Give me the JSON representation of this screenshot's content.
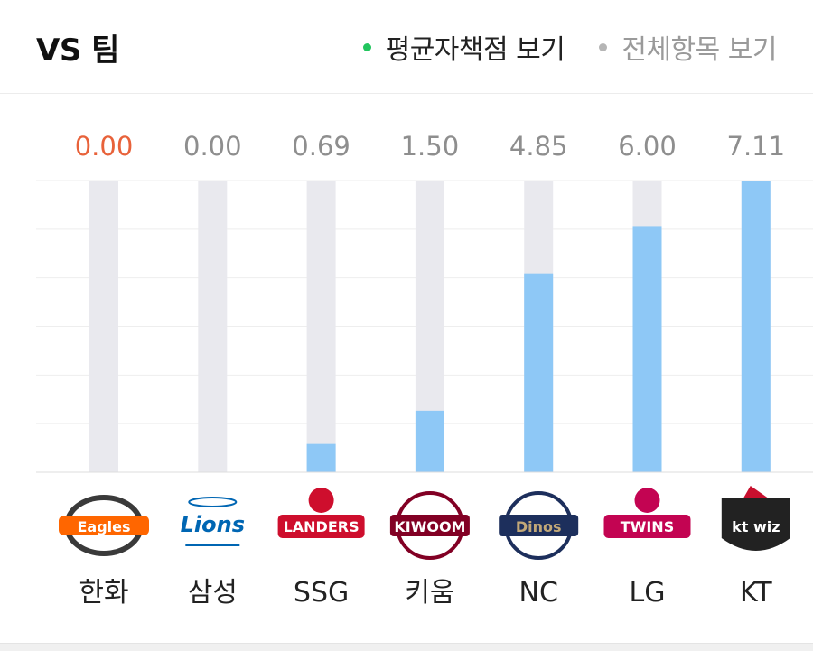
{
  "header": {
    "title": "VS 팀",
    "toggles": [
      {
        "label": "평균자책점 보기",
        "active": true
      },
      {
        "label": "전체항목 보기",
        "active": false
      }
    ]
  },
  "colors": {
    "bar_fill": "#8ec8f6",
    "bar_track": "#e9e9ee",
    "value_highlight": "#e8623a",
    "value_default": "#8e8e8e",
    "grid": "#eeeeee"
  },
  "chart_data": {
    "type": "bar",
    "categories": [
      "한화",
      "삼성",
      "SSG",
      "키움",
      "NC",
      "LG",
      "KT"
    ],
    "values": [
      0.0,
      0.0,
      0.69,
      1.5,
      4.85,
      6.0,
      7.11
    ],
    "value_labels": [
      "0.00",
      "0.00",
      "0.69",
      "1.50",
      "4.85",
      "6.00",
      "7.11"
    ],
    "highlight_index": 0,
    "ylim": [
      0,
      7.11
    ],
    "grid": true
  },
  "team_logos": [
    {
      "name": "Eagles",
      "icon": "eagles-logo",
      "bg": "#ff6600",
      "fg": "#ffffff",
      "shape": "oval"
    },
    {
      "name": "Lions",
      "icon": "lions-logo",
      "bg": "#ffffff",
      "fg": "#0066b3",
      "shape": "script"
    },
    {
      "name": "LANDERS",
      "icon": "landers-logo",
      "bg": "#ce0e2d",
      "fg": "#ffffff",
      "shape": "badge"
    },
    {
      "name": "KIWOOM",
      "icon": "kiwoom-logo",
      "bg": "#820024",
      "fg": "#ffffff",
      "shape": "ball"
    },
    {
      "name": "Dinos",
      "icon": "dinos-logo",
      "bg": "#1d2f5c",
      "fg": "#c2a878",
      "shape": "ball"
    },
    {
      "name": "TWINS",
      "icon": "twins-logo",
      "bg": "#c30452",
      "fg": "#ffffff",
      "shape": "badge"
    },
    {
      "name": "kt wiz",
      "icon": "ktwiz-logo",
      "bg": "#222222",
      "fg": "#ffffff",
      "shape": "shield"
    }
  ]
}
